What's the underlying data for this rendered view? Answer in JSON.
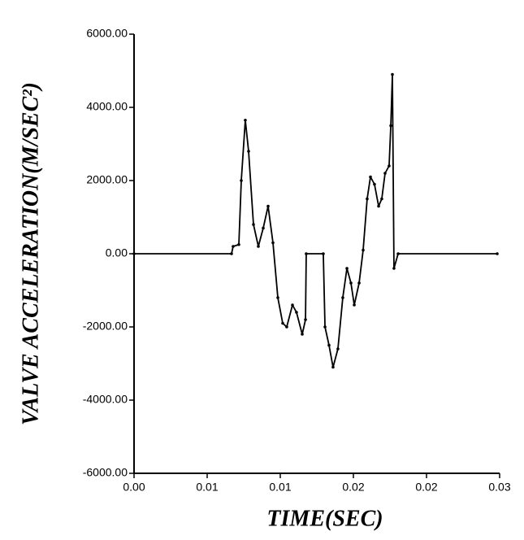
{
  "chart_data": {
    "type": "line",
    "x_label": "TIME(SEC)",
    "y_label": "VALVE ACCELERATION(M/SEC²)",
    "x": [
      0,
      0.008,
      0.00813,
      0.0086,
      0.0088,
      0.00913,
      0.0094,
      0.0098,
      0.0102,
      0.0106,
      0.011,
      0.0114,
      0.0118,
      0.0122,
      0.01253,
      0.013,
      0.01333,
      0.0138,
      0.01407,
      0.01413,
      0.01553,
      0.01567,
      0.016,
      0.01633,
      0.01673,
      0.01713,
      0.01747,
      0.0178,
      0.01807,
      0.01847,
      0.0188,
      0.01913,
      0.0194,
      0.01973,
      0.02007,
      0.02033,
      0.0206,
      0.02093,
      0.02107,
      0.0212,
      0.02133,
      0.02167,
      0.0298
    ],
    "series": [
      {
        "color": "#000000",
        "values": [
          0,
          0,
          200,
          250,
          2000,
          3650,
          2800,
          800,
          200,
          700,
          1300,
          300,
          -1200,
          -1900,
          -2000,
          -1400,
          -1600,
          -2200,
          -1800,
          0,
          0,
          -2000,
          -2500,
          -3100,
          -2600,
          -1200,
          -400,
          -800,
          -1400,
          -800,
          100,
          1500,
          2100,
          1900,
          1300,
          1500,
          2200,
          2400,
          3500,
          4900,
          -400,
          0,
          0
        ]
      }
    ],
    "xlim": [
      0,
      0.03
    ],
    "ylim": [
      -6000,
      6000
    ],
    "xticks": [
      {
        "value": 0,
        "label": "0.00"
      },
      {
        "value": 0.006,
        "label": "0.01"
      },
      {
        "value": 0.012,
        "label": "0.01"
      },
      {
        "value": 0.018,
        "label": "0.02"
      },
      {
        "value": 0.024,
        "label": "0.02"
      },
      {
        "value": 0.03,
        "label": "0.03"
      }
    ],
    "yticks": [
      {
        "value": -6000,
        "label": "-6000.00"
      },
      {
        "value": -4000,
        "label": "-4000.00"
      },
      {
        "value": -2000,
        "label": "-2000.00"
      },
      {
        "value": 0,
        "label": "0.00"
      },
      {
        "value": 2000,
        "label": "2000.00"
      },
      {
        "value": 4000,
        "label": "4000.00"
      },
      {
        "value": 6000,
        "label": "6000.00"
      }
    ],
    "grid": false
  }
}
